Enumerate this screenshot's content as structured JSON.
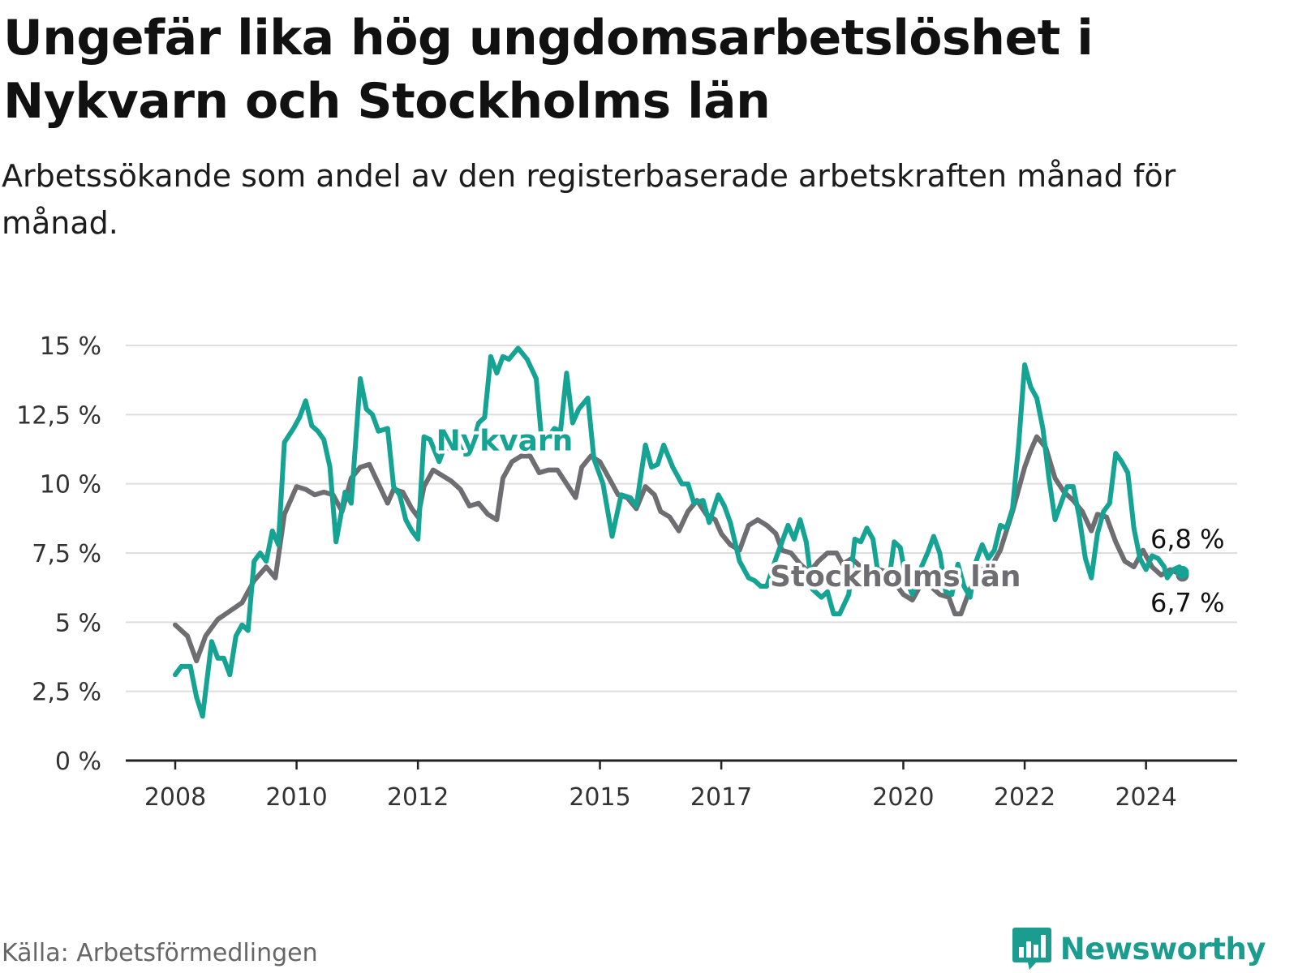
{
  "chart_data": {
    "type": "line",
    "title": "Ungefär lika hög ungdomsarbetslöshet i Nykvarn och Stockholms län",
    "subtitle": "Arbetssökande som andel av den registerbaserade arbetskraften månad för månad.",
    "xlabel": "",
    "ylabel": "",
    "xlim": [
      2008,
      2024.7
    ],
    "ylim": [
      0,
      15
    ],
    "grid": true,
    "y_ticks": [
      {
        "value": 0,
        "label": "0 %"
      },
      {
        "value": 2.5,
        "label": "2,5 %"
      },
      {
        "value": 5,
        "label": "5 %"
      },
      {
        "value": 7.5,
        "label": "7,5 %"
      },
      {
        "value": 10,
        "label": "10 %"
      },
      {
        "value": 12.5,
        "label": "12,5 %"
      },
      {
        "value": 15,
        "label": "15 %"
      }
    ],
    "x_ticks": [
      {
        "value": 2008,
        "label": "2008"
      },
      {
        "value": 2010,
        "label": "2010"
      },
      {
        "value": 2012,
        "label": "2012"
      },
      {
        "value": 2015,
        "label": "2015"
      },
      {
        "value": 2017,
        "label": "2017"
      },
      {
        "value": 2020,
        "label": "2020"
      },
      {
        "value": 2022,
        "label": "2022"
      },
      {
        "value": 2024,
        "label": "2024"
      }
    ],
    "series": [
      {
        "name": "Stockholms län",
        "color": "#6d6d72",
        "end_label": "6,7 %",
        "points": [
          [
            2008.0,
            4.9
          ],
          [
            2008.2,
            4.5
          ],
          [
            2008.35,
            3.6
          ],
          [
            2008.5,
            4.5
          ],
          [
            2008.7,
            5.1
          ],
          [
            2008.9,
            5.4
          ],
          [
            2009.1,
            5.7
          ],
          [
            2009.3,
            6.5
          ],
          [
            2009.5,
            7.0
          ],
          [
            2009.65,
            6.6
          ],
          [
            2009.8,
            8.9
          ],
          [
            2010.0,
            9.9
          ],
          [
            2010.15,
            9.8
          ],
          [
            2010.3,
            9.6
          ],
          [
            2010.45,
            9.7
          ],
          [
            2010.6,
            9.6
          ],
          [
            2010.75,
            9.0
          ],
          [
            2010.9,
            10.2
          ],
          [
            2011.05,
            10.6
          ],
          [
            2011.2,
            10.7
          ],
          [
            2011.35,
            10.0
          ],
          [
            2011.5,
            9.3
          ],
          [
            2011.6,
            9.8
          ],
          [
            2011.75,
            9.7
          ],
          [
            2011.9,
            9.1
          ],
          [
            2012.0,
            8.8
          ],
          [
            2012.1,
            9.9
          ],
          [
            2012.25,
            10.5
          ],
          [
            2012.4,
            10.3
          ],
          [
            2012.55,
            10.1
          ],
          [
            2012.7,
            9.8
          ],
          [
            2012.85,
            9.2
          ],
          [
            2013.0,
            9.3
          ],
          [
            2013.15,
            8.9
          ],
          [
            2013.3,
            8.7
          ],
          [
            2013.4,
            10.2
          ],
          [
            2013.55,
            10.8
          ],
          [
            2013.7,
            11.0
          ],
          [
            2013.85,
            11.0
          ],
          [
            2014.0,
            10.4
          ],
          [
            2014.15,
            10.5
          ],
          [
            2014.3,
            10.5
          ],
          [
            2014.45,
            10.0
          ],
          [
            2014.6,
            9.5
          ],
          [
            2014.7,
            10.6
          ],
          [
            2014.85,
            11.0
          ],
          [
            2015.0,
            10.8
          ],
          [
            2015.15,
            10.2
          ],
          [
            2015.3,
            9.6
          ],
          [
            2015.45,
            9.5
          ],
          [
            2015.6,
            9.1
          ],
          [
            2015.75,
            9.9
          ],
          [
            2015.9,
            9.6
          ],
          [
            2016.0,
            9.0
          ],
          [
            2016.15,
            8.8
          ],
          [
            2016.3,
            8.3
          ],
          [
            2016.45,
            9.0
          ],
          [
            2016.6,
            9.4
          ],
          [
            2016.75,
            8.9
          ],
          [
            2016.9,
            8.7
          ],
          [
            2017.0,
            8.2
          ],
          [
            2017.15,
            7.8
          ],
          [
            2017.3,
            7.6
          ],
          [
            2017.45,
            8.5
          ],
          [
            2017.6,
            8.7
          ],
          [
            2017.75,
            8.5
          ],
          [
            2017.9,
            8.2
          ],
          [
            2018.0,
            7.6
          ],
          [
            2018.15,
            7.5
          ],
          [
            2018.3,
            7.1
          ],
          [
            2018.45,
            6.8
          ],
          [
            2018.6,
            7.2
          ],
          [
            2018.75,
            7.5
          ],
          [
            2018.9,
            7.5
          ],
          [
            2019.0,
            7.1
          ],
          [
            2019.15,
            7.3
          ],
          [
            2019.3,
            7.0
          ],
          [
            2019.45,
            6.6
          ],
          [
            2019.6,
            6.9
          ],
          [
            2019.75,
            6.8
          ],
          [
            2019.9,
            6.3
          ],
          [
            2020.0,
            6.0
          ],
          [
            2020.15,
            5.8
          ],
          [
            2020.3,
            6.4
          ],
          [
            2020.45,
            6.3
          ],
          [
            2020.6,
            6.0
          ],
          [
            2020.75,
            5.9
          ],
          [
            2020.85,
            5.3
          ],
          [
            2020.95,
            5.3
          ],
          [
            2021.1,
            6.2
          ],
          [
            2021.3,
            6.9
          ],
          [
            2021.45,
            7.0
          ],
          [
            2021.6,
            7.6
          ],
          [
            2021.8,
            9.0
          ],
          [
            2022.0,
            10.6
          ],
          [
            2022.1,
            11.2
          ],
          [
            2022.2,
            11.7
          ],
          [
            2022.35,
            11.3
          ],
          [
            2022.5,
            10.2
          ],
          [
            2022.65,
            9.7
          ],
          [
            2022.8,
            9.4
          ],
          [
            2022.95,
            9.0
          ],
          [
            2023.1,
            8.3
          ],
          [
            2023.2,
            8.9
          ],
          [
            2023.35,
            8.8
          ],
          [
            2023.5,
            7.9
          ],
          [
            2023.65,
            7.2
          ],
          [
            2023.8,
            7.0
          ],
          [
            2023.95,
            7.6
          ],
          [
            2024.1,
            7.0
          ],
          [
            2024.25,
            6.7
          ],
          [
            2024.4,
            6.9
          ],
          [
            2024.5,
            6.8
          ],
          [
            2024.6,
            6.7
          ]
        ]
      },
      {
        "name": "Nykvarn",
        "color": "#15a393",
        "end_label": "6,8 %",
        "points": [
          [
            2008.0,
            3.1
          ],
          [
            2008.1,
            3.4
          ],
          [
            2008.25,
            3.4
          ],
          [
            2008.35,
            2.3
          ],
          [
            2008.45,
            1.6
          ],
          [
            2008.6,
            4.3
          ],
          [
            2008.7,
            3.7
          ],
          [
            2008.8,
            3.7
          ],
          [
            2008.9,
            3.1
          ],
          [
            2009.0,
            4.5
          ],
          [
            2009.1,
            4.9
          ],
          [
            2009.2,
            4.7
          ],
          [
            2009.3,
            7.2
          ],
          [
            2009.4,
            7.5
          ],
          [
            2009.5,
            7.2
          ],
          [
            2009.6,
            8.3
          ],
          [
            2009.7,
            7.8
          ],
          [
            2009.8,
            11.5
          ],
          [
            2009.95,
            12.0
          ],
          [
            2010.05,
            12.4
          ],
          [
            2010.15,
            13.0
          ],
          [
            2010.25,
            12.1
          ],
          [
            2010.35,
            11.9
          ],
          [
            2010.45,
            11.6
          ],
          [
            2010.55,
            10.6
          ],
          [
            2010.65,
            7.9
          ],
          [
            2010.8,
            9.7
          ],
          [
            2010.9,
            9.3
          ],
          [
            2011.05,
            13.8
          ],
          [
            2011.15,
            12.7
          ],
          [
            2011.25,
            12.5
          ],
          [
            2011.35,
            11.9
          ],
          [
            2011.5,
            12.0
          ],
          [
            2011.6,
            9.9
          ],
          [
            2011.7,
            9.6
          ],
          [
            2011.8,
            8.7
          ],
          [
            2011.9,
            8.3
          ],
          [
            2012.0,
            8.0
          ],
          [
            2012.1,
            11.7
          ],
          [
            2012.2,
            11.6
          ],
          [
            2012.35,
            10.8
          ],
          [
            2012.45,
            11.4
          ],
          [
            2012.55,
            11.2
          ],
          [
            2012.65,
            11.7
          ],
          [
            2012.75,
            11.3
          ],
          [
            2012.85,
            11.0
          ],
          [
            2013.0,
            12.2
          ],
          [
            2013.1,
            12.4
          ],
          [
            2013.2,
            14.6
          ],
          [
            2013.3,
            14.0
          ],
          [
            2013.4,
            14.6
          ],
          [
            2013.5,
            14.5
          ],
          [
            2013.65,
            14.9
          ],
          [
            2013.8,
            14.5
          ],
          [
            2013.95,
            13.8
          ],
          [
            2014.05,
            11.3
          ],
          [
            2014.15,
            11.7
          ],
          [
            2014.25,
            12.0
          ],
          [
            2014.35,
            11.9
          ],
          [
            2014.45,
            14.0
          ],
          [
            2014.55,
            12.2
          ],
          [
            2014.65,
            12.7
          ],
          [
            2014.8,
            13.1
          ],
          [
            2014.9,
            10.9
          ],
          [
            2015.05,
            10.0
          ],
          [
            2015.2,
            8.1
          ],
          [
            2015.35,
            9.6
          ],
          [
            2015.5,
            9.5
          ],
          [
            2015.6,
            9.2
          ],
          [
            2015.75,
            11.4
          ],
          [
            2015.85,
            10.6
          ],
          [
            2015.95,
            10.7
          ],
          [
            2016.05,
            11.4
          ],
          [
            2016.2,
            10.6
          ],
          [
            2016.35,
            10.0
          ],
          [
            2016.45,
            10.0
          ],
          [
            2016.55,
            9.3
          ],
          [
            2016.7,
            9.4
          ],
          [
            2016.8,
            8.6
          ],
          [
            2016.95,
            9.6
          ],
          [
            2017.05,
            9.2
          ],
          [
            2017.15,
            8.6
          ],
          [
            2017.3,
            7.2
          ],
          [
            2017.45,
            6.6
          ],
          [
            2017.55,
            6.5
          ],
          [
            2017.65,
            6.3
          ],
          [
            2017.75,
            6.3
          ],
          [
            2017.9,
            7.3
          ],
          [
            2018.0,
            7.9
          ],
          [
            2018.1,
            8.5
          ],
          [
            2018.2,
            8.0
          ],
          [
            2018.3,
            8.7
          ],
          [
            2018.4,
            7.9
          ],
          [
            2018.5,
            6.2
          ],
          [
            2018.65,
            5.9
          ],
          [
            2018.75,
            6.1
          ],
          [
            2018.85,
            5.3
          ],
          [
            2018.95,
            5.3
          ],
          [
            2019.1,
            6.0
          ],
          [
            2019.2,
            8.0
          ],
          [
            2019.3,
            7.9
          ],
          [
            2019.4,
            8.4
          ],
          [
            2019.5,
            8.0
          ],
          [
            2019.6,
            6.5
          ],
          [
            2019.75,
            6.3
          ],
          [
            2019.85,
            7.9
          ],
          [
            2019.95,
            7.7
          ],
          [
            2020.05,
            6.5
          ],
          [
            2020.15,
            6.0
          ],
          [
            2020.3,
            7.0
          ],
          [
            2020.4,
            7.5
          ],
          [
            2020.5,
            8.1
          ],
          [
            2020.6,
            7.5
          ],
          [
            2020.7,
            6.1
          ],
          [
            2020.8,
            6.0
          ],
          [
            2020.9,
            7.1
          ],
          [
            2021.0,
            6.3
          ],
          [
            2021.1,
            5.9
          ],
          [
            2021.2,
            7.2
          ],
          [
            2021.3,
            7.8
          ],
          [
            2021.4,
            7.3
          ],
          [
            2021.5,
            7.6
          ],
          [
            2021.6,
            8.5
          ],
          [
            2021.7,
            8.4
          ],
          [
            2021.8,
            9.1
          ],
          [
            2021.9,
            11.4
          ],
          [
            2022.0,
            14.3
          ],
          [
            2022.1,
            13.5
          ],
          [
            2022.2,
            13.1
          ],
          [
            2022.3,
            12.0
          ],
          [
            2022.4,
            10.2
          ],
          [
            2022.5,
            8.7
          ],
          [
            2022.6,
            9.3
          ],
          [
            2022.7,
            9.9
          ],
          [
            2022.8,
            9.9
          ],
          [
            2022.9,
            8.8
          ],
          [
            2023.0,
            7.3
          ],
          [
            2023.1,
            6.6
          ],
          [
            2023.2,
            8.2
          ],
          [
            2023.3,
            9.0
          ],
          [
            2023.4,
            9.3
          ],
          [
            2023.5,
            11.1
          ],
          [
            2023.6,
            10.8
          ],
          [
            2023.7,
            10.4
          ],
          [
            2023.8,
            8.4
          ],
          [
            2023.9,
            7.3
          ],
          [
            2024.0,
            6.9
          ],
          [
            2024.1,
            7.4
          ],
          [
            2024.2,
            7.3
          ],
          [
            2024.3,
            7.0
          ],
          [
            2024.35,
            6.6
          ],
          [
            2024.45,
            6.9
          ],
          [
            2024.55,
            7.0
          ],
          [
            2024.6,
            6.8
          ]
        ]
      }
    ]
  },
  "footer": {
    "source": "Källa: Arbetsförmedlingen",
    "brand": "Newsworthy",
    "brand_color": "#1a9c8e"
  },
  "icons": {
    "brand_logo": "bar-chart-speech-bubble-icon"
  }
}
